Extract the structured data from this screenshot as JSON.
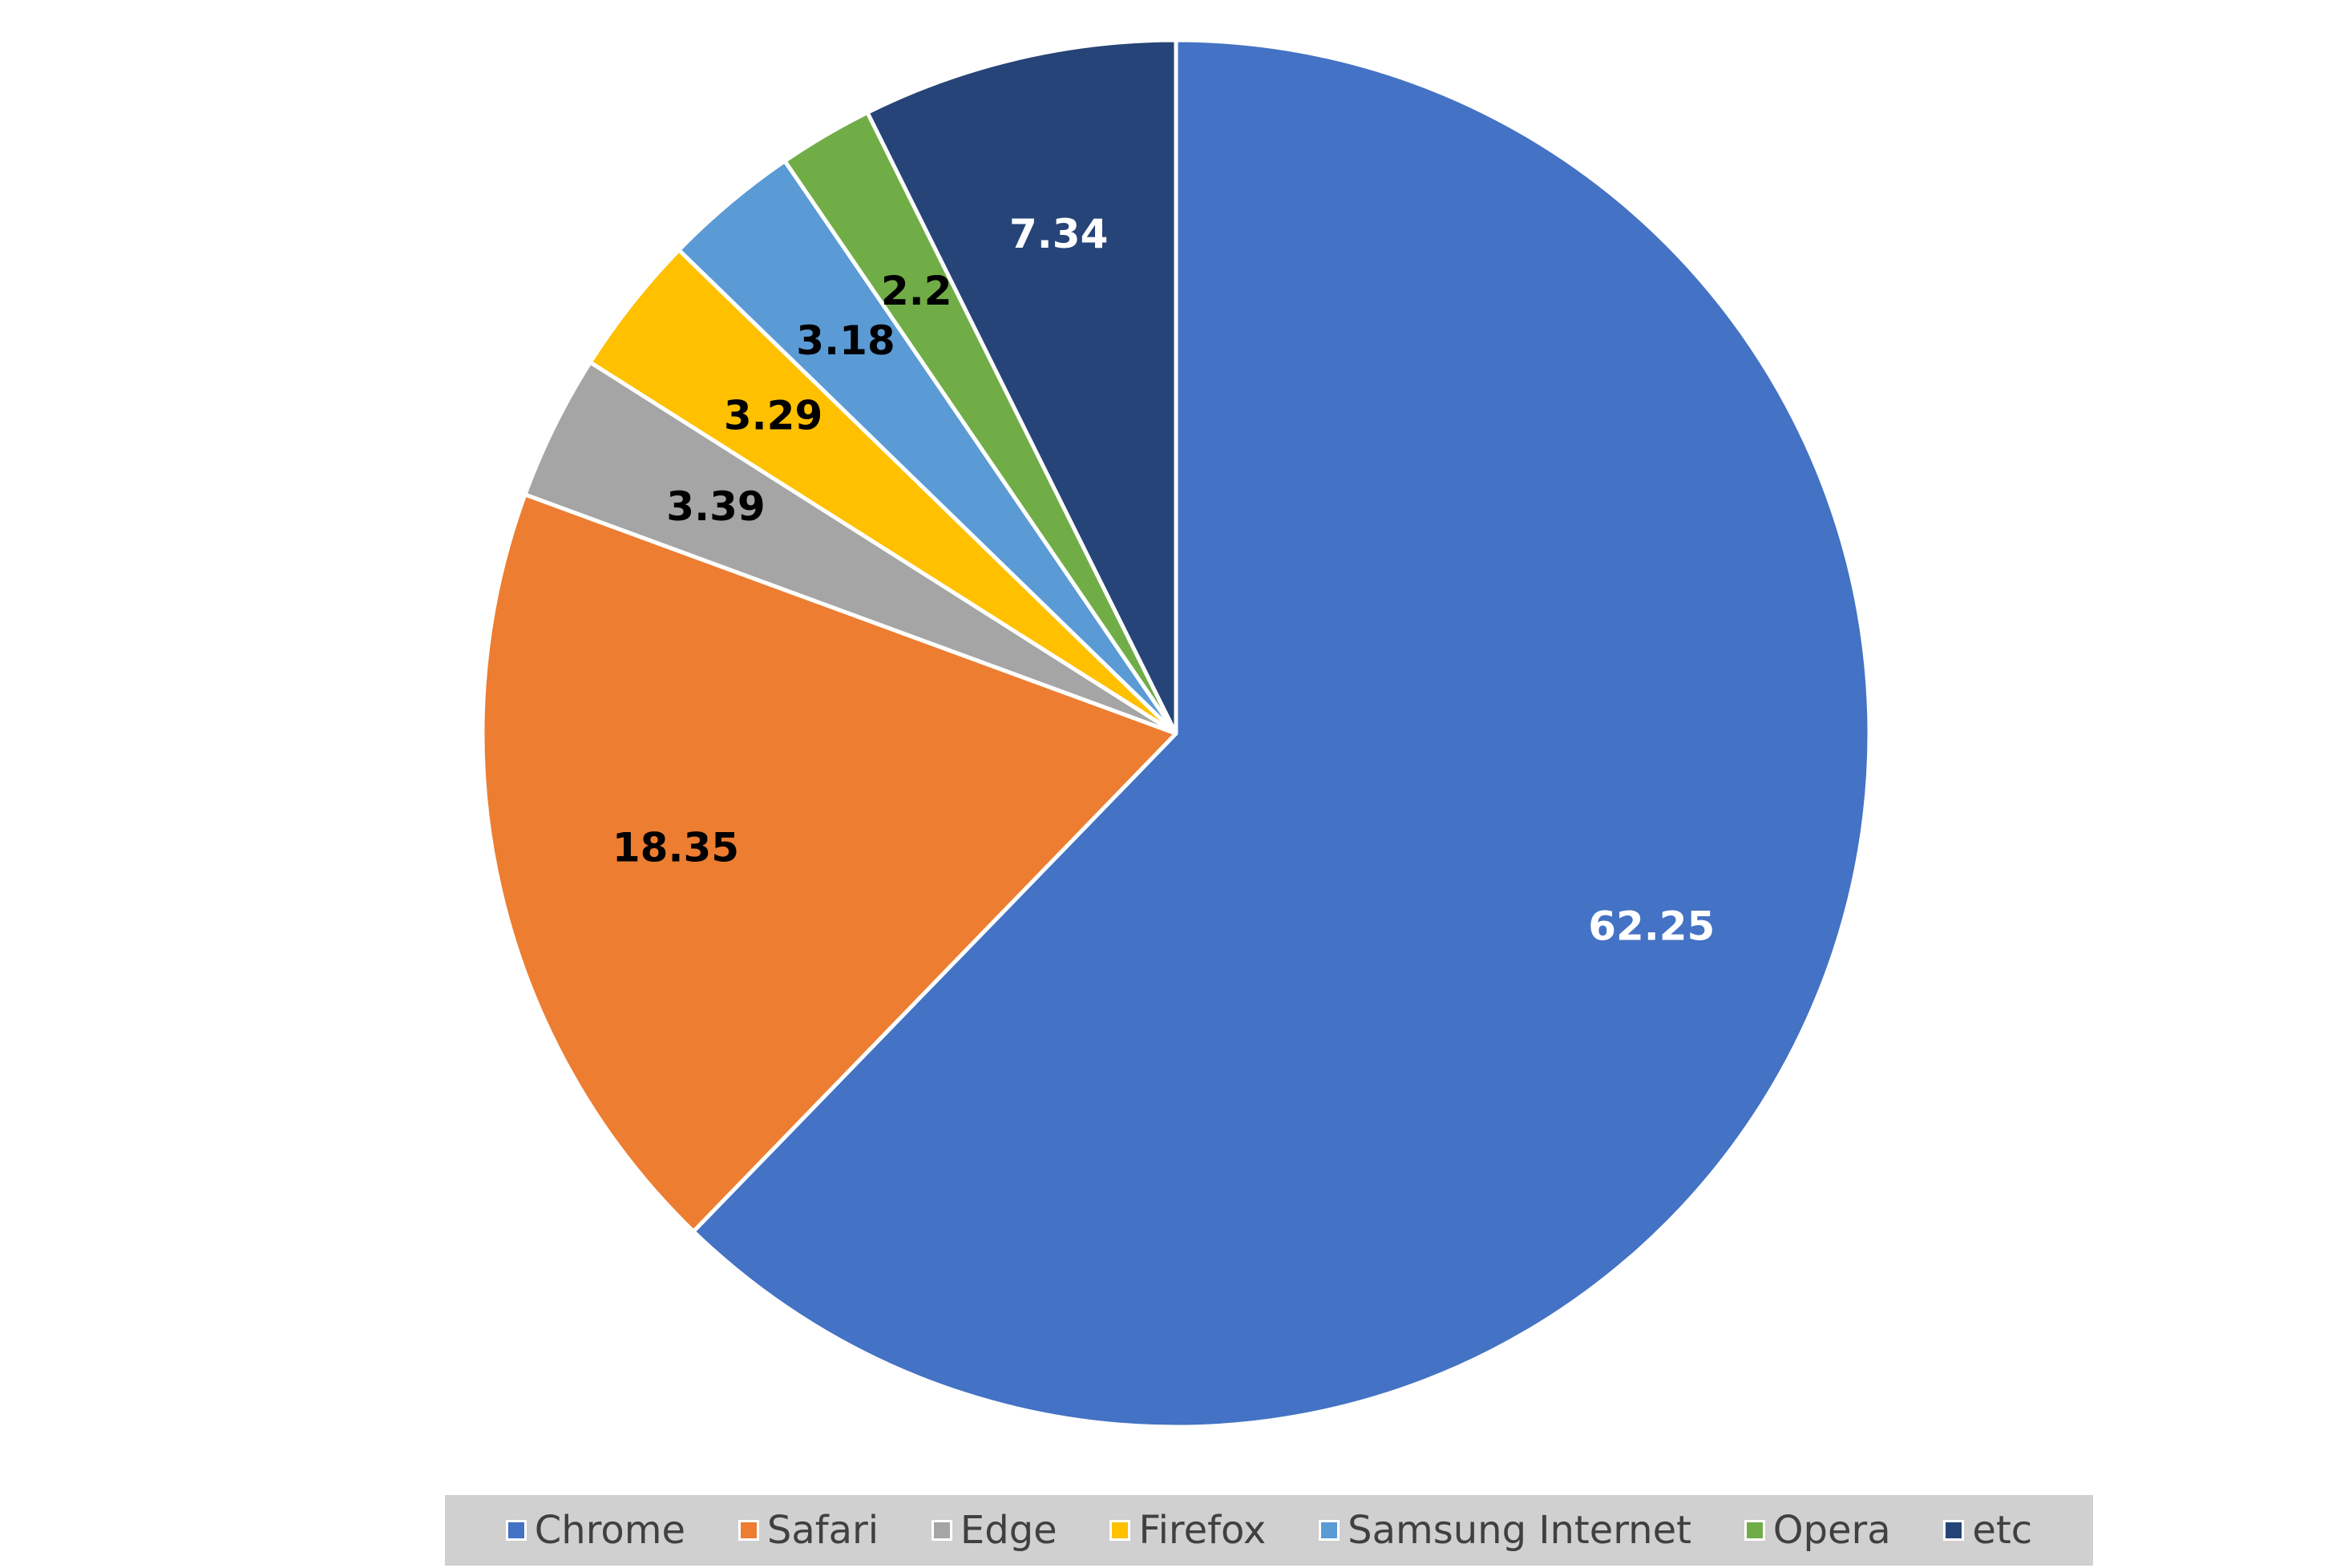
{
  "chart_data": {
    "type": "pie",
    "title": "",
    "categories": [
      "Chrome",
      "Safari",
      "Edge",
      "Firefox",
      "Samsung Internet",
      "Opera",
      "etc"
    ],
    "values": [
      62.25,
      18.35,
      3.39,
      3.29,
      3.18,
      2.2,
      7.34
    ],
    "data_labels": [
      "62.25",
      "18.35",
      "3.39",
      "3.29",
      "3.18",
      "2.2",
      "7.34"
    ],
    "colors": [
      "#4472C4",
      "#ED7D31",
      "#A5A5A5",
      "#FFC000",
      "#5B9BD5",
      "#70AD47",
      "#264478"
    ],
    "label_colors": [
      "#FFFFFF",
      "#000000",
      "#000000",
      "#000000",
      "#000000",
      "#000000",
      "#FFFFFF"
    ],
    "start_angle": "12 o'clock, clockwise",
    "legend": {
      "placement": "bottom",
      "items": [
        "Chrome",
        "Safari",
        "Edge",
        "Firefox",
        "Samsung Internet",
        "Opera",
        "etc"
      ]
    }
  }
}
